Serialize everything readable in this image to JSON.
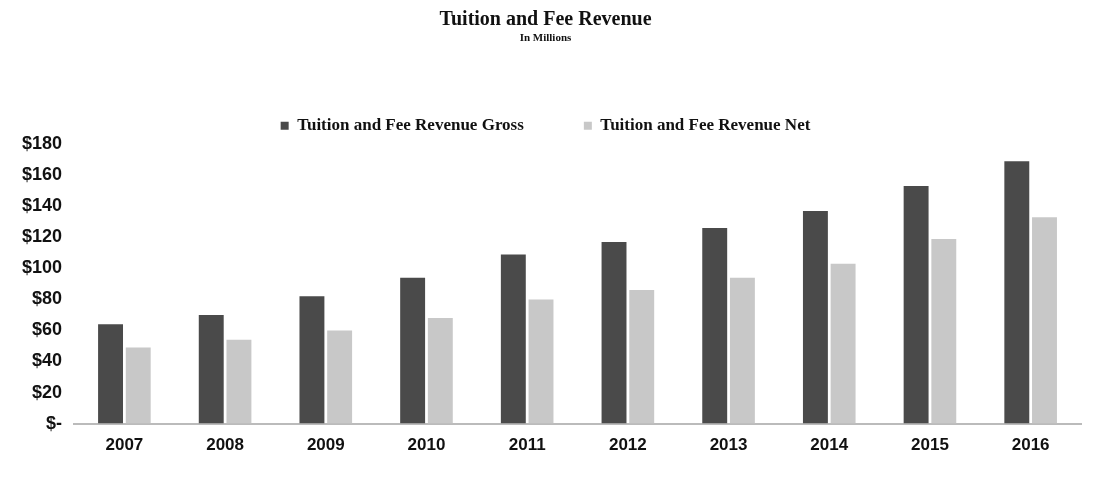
{
  "chart_data": {
    "type": "bar",
    "title": "Tuition and Fee Revenue",
    "subtitle": "In Millions",
    "categories": [
      "2007",
      "2008",
      "2009",
      "2010",
      "2011",
      "2012",
      "2013",
      "2014",
      "2015",
      "2016"
    ],
    "series": [
      {
        "name": "Tuition and Fee Revenue Gross",
        "color": "#4a4a4a",
        "values": [
          64,
          70,
          82,
          94,
          109,
          117,
          126,
          137,
          153,
          169
        ]
      },
      {
        "name": "Tuition and Fee Revenue Net",
        "color": "#c8c8c8",
        "values": [
          49,
          54,
          60,
          68,
          80,
          86,
          94,
          103,
          119,
          133
        ]
      }
    ],
    "ylim": [
      0,
      180
    ],
    "yticks": [
      {
        "value": 0,
        "label": "$-"
      },
      {
        "value": 20,
        "label": "$20"
      },
      {
        "value": 40,
        "label": "$40"
      },
      {
        "value": 60,
        "label": "$60"
      },
      {
        "value": 80,
        "label": "$80"
      },
      {
        "value": 100,
        "label": "$100"
      },
      {
        "value": 120,
        "label": "$120"
      },
      {
        "value": 140,
        "label": "$140"
      },
      {
        "value": 160,
        "label": "$160"
      },
      {
        "value": 180,
        "label": "$180"
      }
    ],
    "grid": false,
    "legend": "top"
  }
}
